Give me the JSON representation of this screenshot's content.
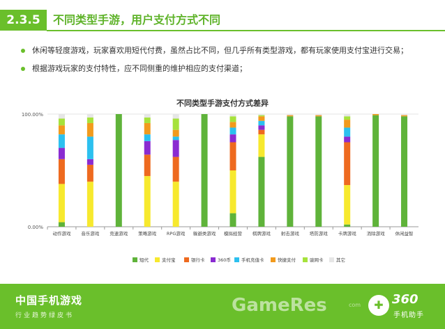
{
  "header": {
    "section_no": "2.3.5",
    "title": "不同类型手游，用户支付方式不同"
  },
  "bullets": [
    "休闲等轻度游戏，玩家喜欢用短代付费，虽然占比不同，但几乎所有类型游戏，都有玩家使用支付宝进行交易；",
    "根据游戏玩家的支付特性，应不同侧重的维护相应的支付渠道；"
  ],
  "colors": {
    "accent": "#6abf2b",
    "series": [
      "#5fb33a",
      "#f7e92e",
      "#ee6a1f",
      "#8a2bd1",
      "#2cc0ef",
      "#f29a1d",
      "#a6e23c",
      "#e6e6e6"
    ]
  },
  "chart_data": {
    "type": "bar",
    "stacked": true,
    "percent": true,
    "title": "不同类型手游支付方式差异",
    "xlabel": "",
    "ylabel": "",
    "ylim": [
      0,
      100
    ],
    "yticks": [
      "0.00%",
      "100.00%"
    ],
    "legend_position": "bottom",
    "categories": [
      "动作游戏",
      "音乐游戏",
      "竞速游戏",
      "策略游戏",
      "RPG游戏",
      "躲避类游戏",
      "模拟经营",
      "棋牌游戏",
      "射击游戏",
      "塔防游戏",
      "卡牌游戏",
      "消除游戏",
      "休闲益智"
    ],
    "series": [
      {
        "name": "短代",
        "values": [
          4,
          0,
          100,
          0,
          0,
          100,
          12,
          62,
          98,
          98,
          2,
          99,
          98
        ]
      },
      {
        "name": "支付宝",
        "values": [
          34,
          40,
          0,
          45,
          40,
          0,
          38,
          20,
          0,
          0,
          35,
          0,
          0
        ]
      },
      {
        "name": "银行卡",
        "values": [
          22,
          15,
          0,
          19,
          22,
          0,
          25,
          4,
          0,
          0,
          38,
          0,
          0
        ]
      },
      {
        "name": "360币",
        "values": [
          10,
          5,
          0,
          12,
          15,
          0,
          7,
          4,
          0,
          0,
          5,
          0,
          0
        ]
      },
      {
        "name": "手机充值卡",
        "values": [
          12,
          20,
          0,
          6,
          3,
          0,
          6,
          4,
          0,
          0,
          8,
          0,
          0
        ]
      },
      {
        "name": "快捷支付",
        "values": [
          8,
          12,
          0,
          10,
          6,
          0,
          5,
          4,
          1,
          1,
          7,
          1,
          1
        ]
      },
      {
        "name": "骏网卡",
        "values": [
          6,
          5,
          0,
          5,
          10,
          0,
          5,
          1,
          0,
          0,
          3,
          0,
          0
        ]
      },
      {
        "name": "其它",
        "values": [
          4,
          3,
          0,
          3,
          4,
          0,
          2,
          1,
          1,
          1,
          2,
          0,
          1
        ]
      }
    ]
  },
  "footer": {
    "title": "中国手机游戏",
    "subtitle": "行业趋势绿皮书",
    "watermark": "GameRes",
    "watermark_sub": "com",
    "brand_number": "360",
    "brand_name": "手机助手",
    "brand_icon": "360-logo-icon"
  }
}
